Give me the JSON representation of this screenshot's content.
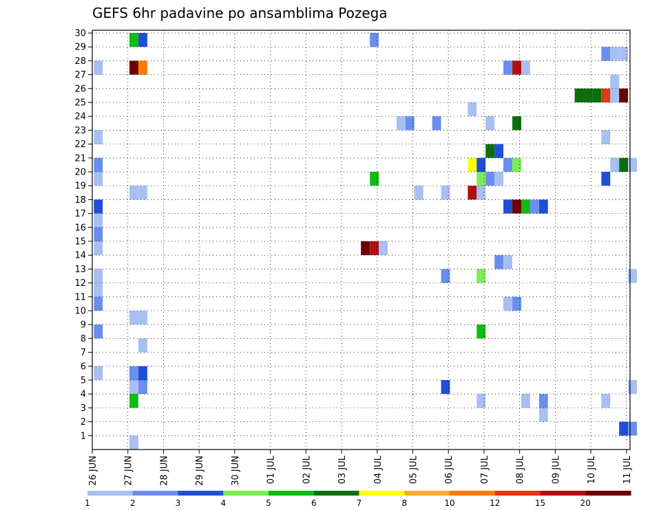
{
  "chart_data": {
    "type": "heatmap",
    "title": "GEFS 6hr padavine po ansamblima Pozega",
    "xlabel": "",
    "ylabel": "",
    "x_ticks": [
      "26 JUN",
      "27 JUN",
      "28 JUN",
      "29 JUN",
      "30 JUN",
      "01 JUL",
      "02 JUL",
      "03 JUL",
      "04 JUL",
      "05 JUL",
      "06 JUL",
      "07 JUL",
      "08 JUL",
      "09 JUL",
      "10 JUL",
      "11 JUL"
    ],
    "y_ticks": [
      "1",
      "2",
      "3",
      "4",
      "5",
      "6",
      "7",
      "8",
      "9",
      "10",
      "11",
      "12",
      "13",
      "14",
      "15",
      "16",
      "17",
      "18",
      "19",
      "20",
      "21",
      "22",
      "23",
      "24",
      "25",
      "26",
      "27",
      "28",
      "29",
      "30"
    ],
    "xlim": [
      0,
      15
    ],
    "ylim": [
      0,
      30
    ],
    "grid": true,
    "color_scale": {
      "labels": [
        "1",
        "2",
        "3",
        "4",
        "5",
        "6",
        "7",
        "8",
        "10",
        "12",
        "15",
        "20"
      ],
      "colors": [
        "#a8bff2",
        "#6a8eee",
        "#1f4fd6",
        "#77ee55",
        "#11bb11",
        "#0c6e0c",
        "#ffff00",
        "#ffaa33",
        "#ff7a00",
        "#e03a10",
        "#b01010",
        "#6e0000"
      ]
    },
    "cells": [
      {
        "x": 1.17,
        "y": 29.5,
        "v": 5
      },
      {
        "x": 1.42,
        "y": 29.5,
        "v": 3
      },
      {
        "x": 7.92,
        "y": 29.5,
        "v": 2
      },
      {
        "x": 14.42,
        "y": 28.5,
        "v": 2
      },
      {
        "x": 14.67,
        "y": 28.5,
        "v": 1
      },
      {
        "x": 14.92,
        "y": 28.5,
        "v": 1
      },
      {
        "x": 0.17,
        "y": 27.5,
        "v": 1
      },
      {
        "x": 1.17,
        "y": 27.5,
        "v": 20
      },
      {
        "x": 1.42,
        "y": 27.5,
        "v": 10
      },
      {
        "x": 11.67,
        "y": 27.5,
        "v": 2
      },
      {
        "x": 11.92,
        "y": 27.5,
        "v": 15
      },
      {
        "x": 12.17,
        "y": 27.5,
        "v": 1
      },
      {
        "x": 14.67,
        "y": 26.5,
        "v": 1
      },
      {
        "x": 13.67,
        "y": 25.5,
        "v": 6
      },
      {
        "x": 13.92,
        "y": 25.5,
        "v": 6
      },
      {
        "x": 14.17,
        "y": 25.5,
        "v": 6
      },
      {
        "x": 14.42,
        "y": 25.5,
        "v": 12
      },
      {
        "x": 14.67,
        "y": 25.5,
        "v": 1
      },
      {
        "x": 14.92,
        "y": 25.5,
        "v": 20
      },
      {
        "x": 10.67,
        "y": 24.5,
        "v": 1
      },
      {
        "x": 8.67,
        "y": 23.5,
        "v": 1
      },
      {
        "x": 8.92,
        "y": 23.5,
        "v": 2
      },
      {
        "x": 9.67,
        "y": 23.5,
        "v": 2
      },
      {
        "x": 11.17,
        "y": 23.5,
        "v": 1
      },
      {
        "x": 11.92,
        "y": 23.5,
        "v": 6
      },
      {
        "x": 0.17,
        "y": 22.5,
        "v": 1
      },
      {
        "x": 14.42,
        "y": 22.5,
        "v": 1
      },
      {
        "x": 11.17,
        "y": 21.5,
        "v": 6
      },
      {
        "x": 11.42,
        "y": 21.5,
        "v": 3
      },
      {
        "x": 0.17,
        "y": 20.5,
        "v": 2
      },
      {
        "x": 10.67,
        "y": 20.5,
        "v": 7
      },
      {
        "x": 10.92,
        "y": 20.5,
        "v": 3
      },
      {
        "x": 11.67,
        "y": 20.5,
        "v": 2
      },
      {
        "x": 11.92,
        "y": 20.5,
        "v": 4
      },
      {
        "x": 14.67,
        "y": 20.5,
        "v": 1
      },
      {
        "x": 14.92,
        "y": 20.5,
        "v": 6
      },
      {
        "x": 15.17,
        "y": 20.5,
        "v": 1
      },
      {
        "x": 0.17,
        "y": 19.5,
        "v": 1
      },
      {
        "x": 7.92,
        "y": 19.5,
        "v": 5
      },
      {
        "x": 10.92,
        "y": 19.5,
        "v": 4
      },
      {
        "x": 11.17,
        "y": 19.5,
        "v": 2
      },
      {
        "x": 11.42,
        "y": 19.5,
        "v": 1
      },
      {
        "x": 14.42,
        "y": 19.5,
        "v": 3
      },
      {
        "x": 1.17,
        "y": 18.5,
        "v": 1
      },
      {
        "x": 1.42,
        "y": 18.5,
        "v": 1
      },
      {
        "x": 9.17,
        "y": 18.5,
        "v": 1
      },
      {
        "x": 9.92,
        "y": 18.5,
        "v": 1
      },
      {
        "x": 10.67,
        "y": 18.5,
        "v": 15
      },
      {
        "x": 10.92,
        "y": 18.5,
        "v": 1
      },
      {
        "x": 0.17,
        "y": 17.5,
        "v": 3
      },
      {
        "x": 11.67,
        "y": 17.5,
        "v": 3
      },
      {
        "x": 11.92,
        "y": 17.5,
        "v": 20
      },
      {
        "x": 12.17,
        "y": 17.5,
        "v": 5
      },
      {
        "x": 12.42,
        "y": 17.5,
        "v": 2
      },
      {
        "x": 12.67,
        "y": 17.5,
        "v": 3
      },
      {
        "x": 0.17,
        "y": 16.5,
        "v": 1
      },
      {
        "x": 0.17,
        "y": 15.5,
        "v": 2
      },
      {
        "x": 0.17,
        "y": 14.5,
        "v": 1
      },
      {
        "x": 7.67,
        "y": 14.5,
        "v": 20
      },
      {
        "x": 7.92,
        "y": 14.5,
        "v": 15
      },
      {
        "x": 8.17,
        "y": 14.5,
        "v": 1
      },
      {
        "x": 11.42,
        "y": 13.5,
        "v": 2
      },
      {
        "x": 11.67,
        "y": 13.5,
        "v": 1
      },
      {
        "x": 0.17,
        "y": 12.5,
        "v": 1
      },
      {
        "x": 9.92,
        "y": 12.5,
        "v": 2
      },
      {
        "x": 10.92,
        "y": 12.5,
        "v": 4
      },
      {
        "x": 15.17,
        "y": 12.5,
        "v": 1
      },
      {
        "x": 0.17,
        "y": 11.5,
        "v": 1
      },
      {
        "x": 0.17,
        "y": 10.5,
        "v": 2
      },
      {
        "x": 11.67,
        "y": 10.5,
        "v": 1
      },
      {
        "x": 11.92,
        "y": 10.5,
        "v": 2
      },
      {
        "x": 1.17,
        "y": 9.5,
        "v": 1
      },
      {
        "x": 1.42,
        "y": 9.5,
        "v": 1
      },
      {
        "x": 0.17,
        "y": 8.5,
        "v": 2
      },
      {
        "x": 10.92,
        "y": 8.5,
        "v": 5
      },
      {
        "x": 1.42,
        "y": 7.5,
        "v": 1
      },
      {
        "x": 0.17,
        "y": 5.5,
        "v": 1
      },
      {
        "x": 1.17,
        "y": 5.5,
        "v": 2
      },
      {
        "x": 1.42,
        "y": 5.5,
        "v": 3
      },
      {
        "x": 1.17,
        "y": 4.5,
        "v": 1
      },
      {
        "x": 1.42,
        "y": 4.5,
        "v": 2
      },
      {
        "x": 9.92,
        "y": 4.5,
        "v": 3
      },
      {
        "x": 15.17,
        "y": 4.5,
        "v": 1
      },
      {
        "x": 1.17,
        "y": 3.5,
        "v": 5
      },
      {
        "x": 10.92,
        "y": 3.5,
        "v": 1
      },
      {
        "x": 12.17,
        "y": 3.5,
        "v": 1
      },
      {
        "x": 12.67,
        "y": 3.5,
        "v": 2
      },
      {
        "x": 14.42,
        "y": 3.5,
        "v": 1
      },
      {
        "x": 12.67,
        "y": 2.5,
        "v": 1
      },
      {
        "x": 14.92,
        "y": 1.5,
        "v": 3
      },
      {
        "x": 15.17,
        "y": 1.5,
        "v": 2
      },
      {
        "x": 1.17,
        "y": 0.5,
        "v": 1
      }
    ]
  }
}
